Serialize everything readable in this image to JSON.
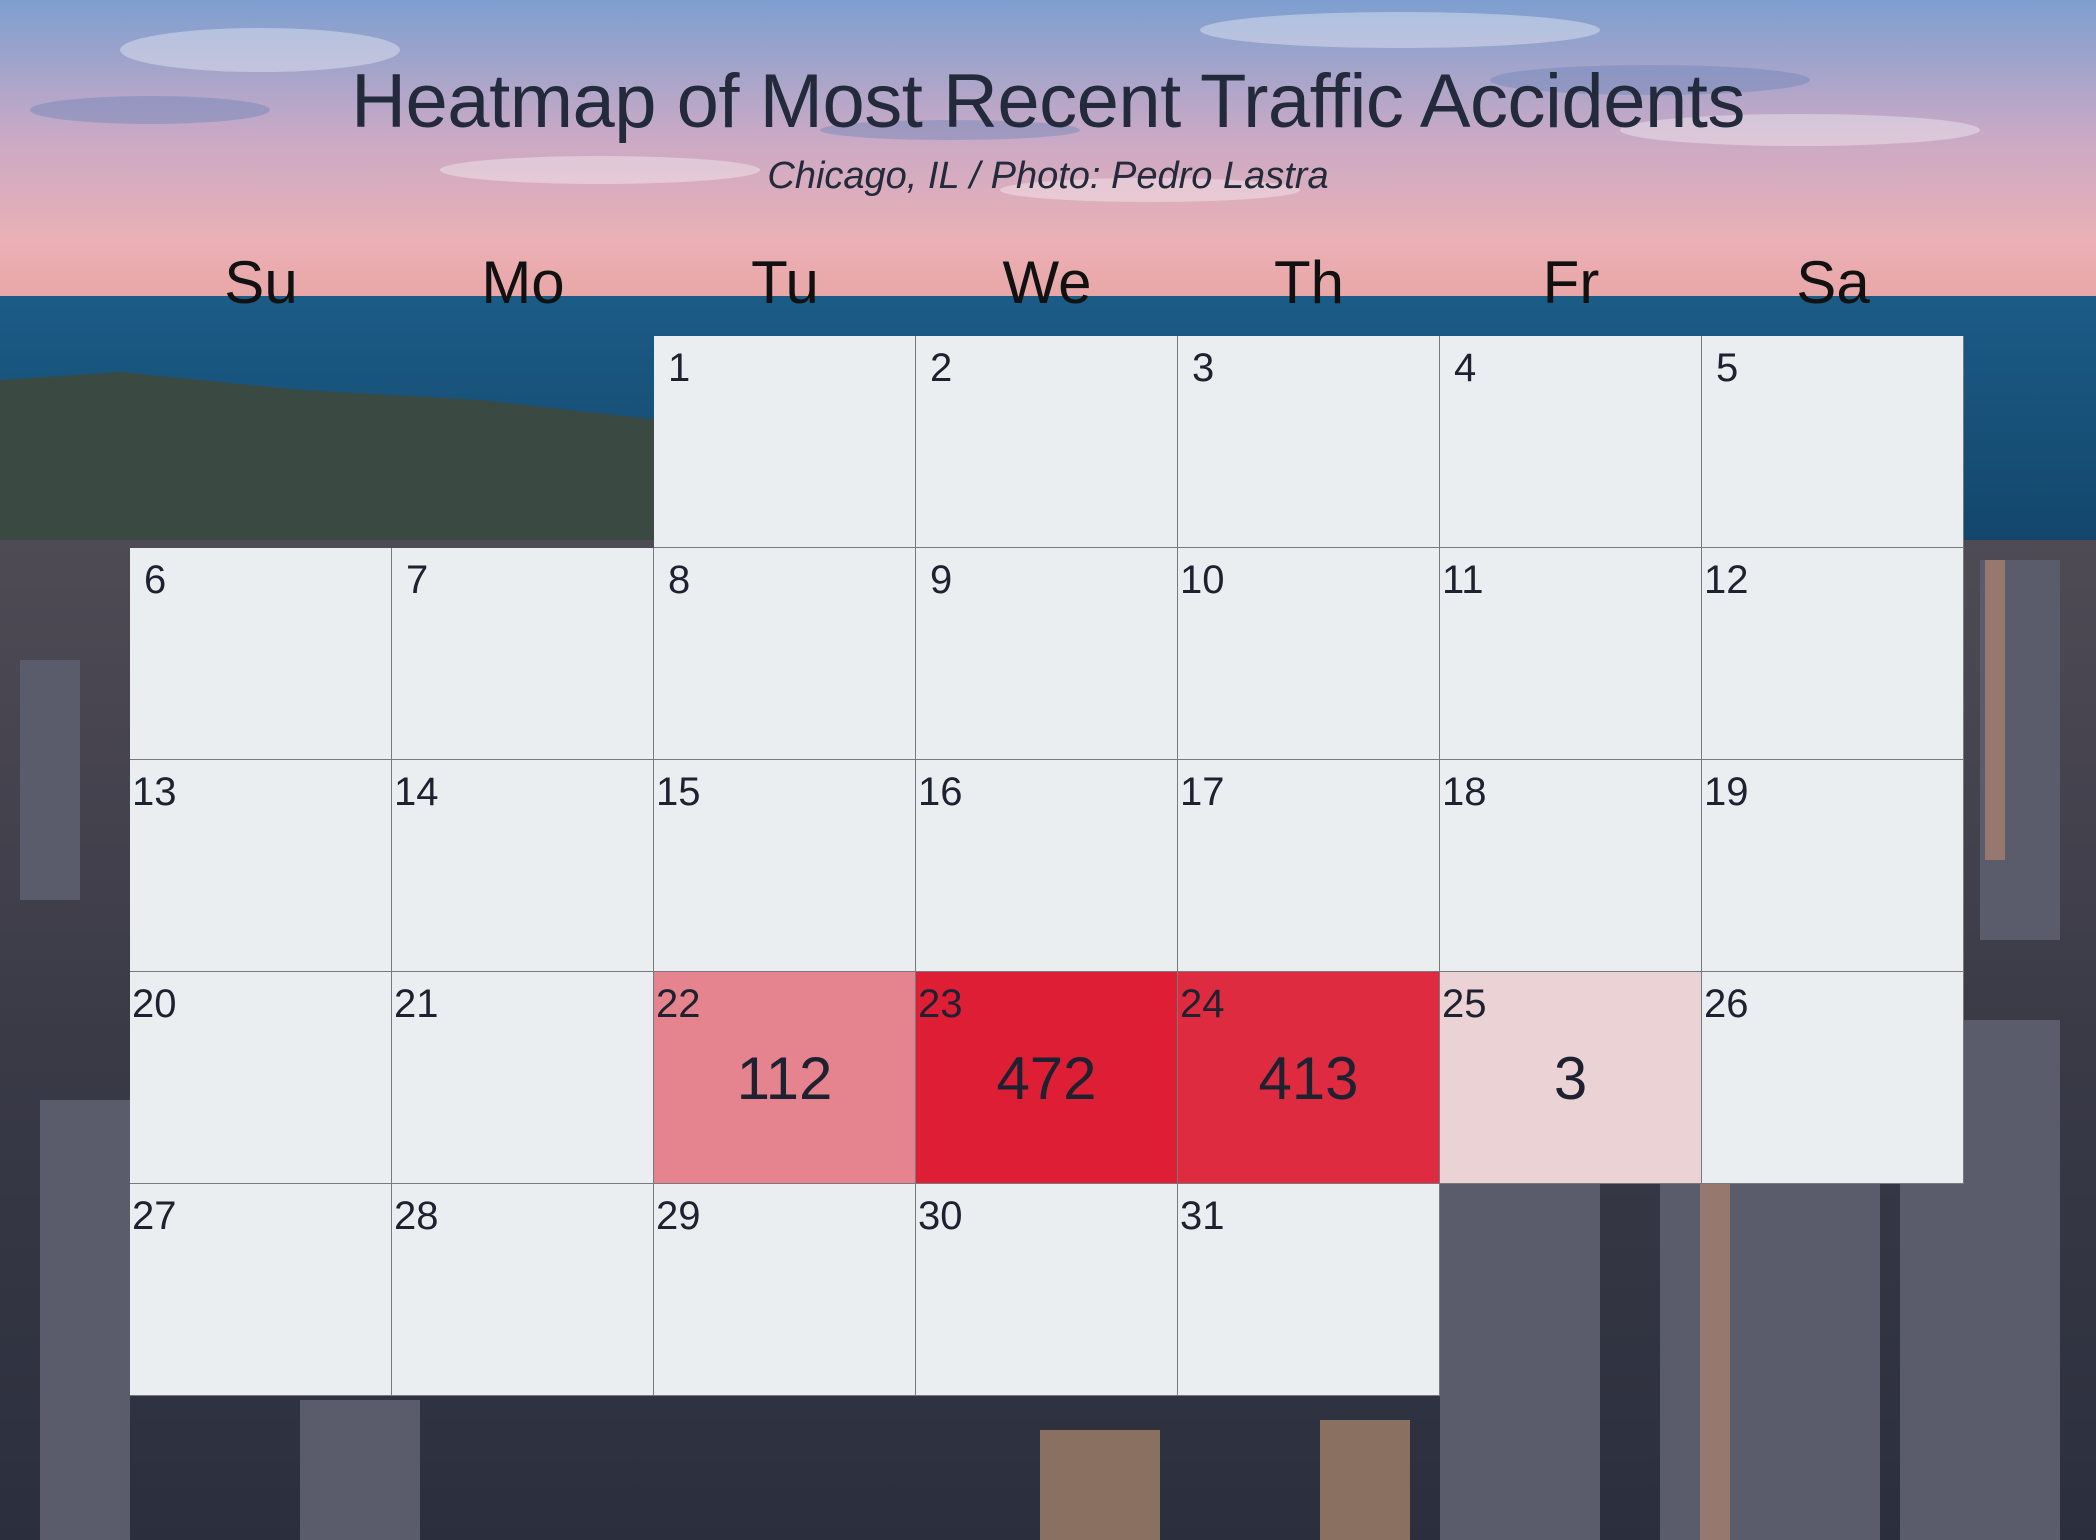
{
  "chart_data": {
    "type": "heatmap",
    "title": "Heatmap of Most Recent Traffic Accidents",
    "subtitle": "Chicago, IL / Photo: Pedro Lastra",
    "weekdays": [
      "Su",
      "Mo",
      "Tu",
      "We",
      "Th",
      "Fr",
      "Sa"
    ],
    "first_weekday_index": 2,
    "days_in_month": 31,
    "values": [
      {
        "day": 22,
        "count": 112
      },
      {
        "day": 23,
        "count": 472
      },
      {
        "day": 24,
        "count": 413
      },
      {
        "day": 25,
        "count": 3
      }
    ],
    "colors": {
      "empty": "#eaeef1",
      "low": "#ece2e3",
      "high": "#dd1e35",
      "grid": "#77797d",
      "text": "#1e2230"
    },
    "color_range": [
      0,
      472
    ]
  }
}
